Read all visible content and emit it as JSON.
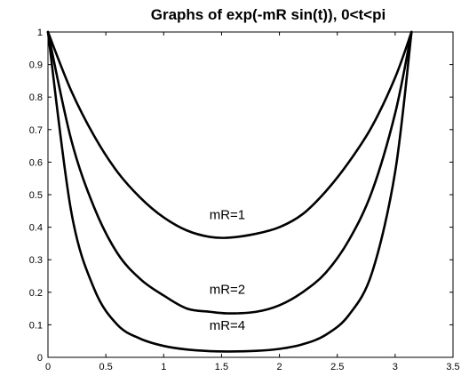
{
  "chart_data": {
    "type": "line",
    "title": "Graphs of exp(-mR sin(t)), 0<t<pi",
    "xlabel": "",
    "ylabel": "",
    "xlim": [
      0,
      3.5
    ],
    "ylim": [
      0,
      1
    ],
    "grid": false,
    "x_ticks": [
      "0",
      "0.5",
      "1",
      "1.5",
      "2",
      "2.5",
      "3",
      "3.5"
    ],
    "y_ticks": [
      "0",
      "0.1",
      "0.2",
      "0.3",
      "0.4",
      "0.5",
      "0.6",
      "0.7",
      "0.8",
      "0.9",
      "1"
    ],
    "line_color": "#000000",
    "series": [
      {
        "label": "mR=1",
        "x": [
          0,
          0.2,
          0.4,
          0.6,
          0.8,
          1.0,
          1.2,
          1.4,
          1.5708,
          1.8,
          2.0,
          2.2,
          2.4,
          2.6,
          2.8,
          3.0,
          3.1416
        ],
        "y": [
          1.0,
          0.82,
          0.68,
          0.57,
          0.49,
          0.43,
          0.39,
          0.37,
          0.368,
          0.38,
          0.4,
          0.44,
          0.51,
          0.6,
          0.71,
          0.86,
          1.0
        ],
        "label_at": [
          1.55,
          0.425
        ]
      },
      {
        "label": "mR=2",
        "x": [
          0,
          0.2,
          0.4,
          0.6,
          0.8,
          1.0,
          1.2,
          1.4,
          1.5708,
          1.8,
          2.0,
          2.2,
          2.4,
          2.6,
          2.8,
          3.0,
          3.1416
        ],
        "y": [
          1.0,
          0.67,
          0.46,
          0.32,
          0.24,
          0.19,
          0.15,
          0.14,
          0.135,
          0.14,
          0.16,
          0.2,
          0.26,
          0.36,
          0.51,
          0.75,
          1.0
        ],
        "label_at": [
          1.55,
          0.195
        ]
      },
      {
        "label": "mR=4",
        "x": [
          0,
          0.2,
          0.4,
          0.6,
          0.8,
          1.0,
          1.2,
          1.4,
          1.5708,
          1.8,
          2.0,
          2.2,
          2.4,
          2.6,
          2.8,
          3.0,
          3.1416
        ],
        "y": [
          1.0,
          0.45,
          0.21,
          0.1,
          0.057,
          0.035,
          0.024,
          0.019,
          0.018,
          0.02,
          0.026,
          0.04,
          0.069,
          0.13,
          0.26,
          0.57,
          1.0
        ],
        "label_at": [
          1.55,
          0.085
        ]
      }
    ]
  }
}
